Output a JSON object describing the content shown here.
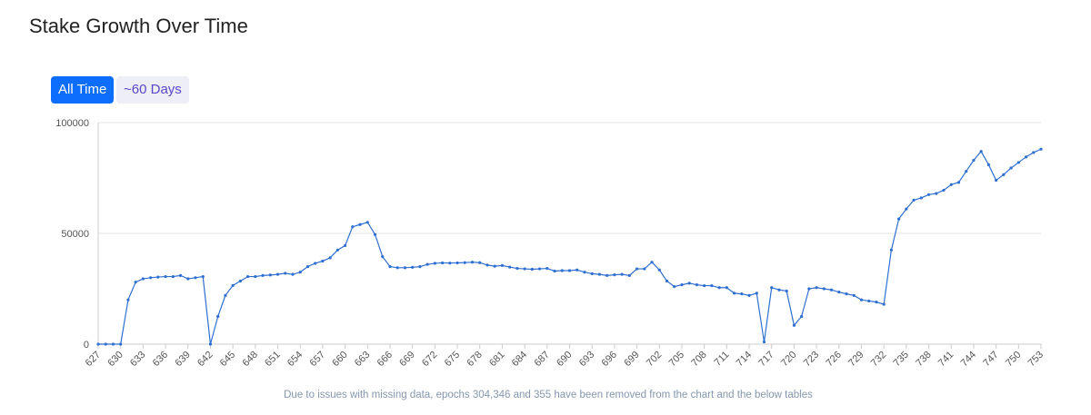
{
  "header": {
    "title": "Stake Growth Over Time"
  },
  "controls": [
    "All Time",
    "~60 Days"
  ],
  "footnote": "Due to issues with missing data, epochs 304,346 and 355 have been removed from the chart and the below tables",
  "chart_data": {
    "type": "line",
    "x": [
      627,
      628,
      629,
      630,
      631,
      632,
      633,
      634,
      635,
      636,
      637,
      638,
      639,
      640,
      641,
      642,
      643,
      644,
      645,
      646,
      647,
      648,
      649,
      650,
      651,
      652,
      653,
      654,
      655,
      656,
      657,
      658,
      659,
      660,
      661,
      662,
      663,
      664,
      665,
      666,
      667,
      668,
      669,
      670,
      671,
      672,
      673,
      674,
      675,
      676,
      677,
      678,
      679,
      680,
      681,
      682,
      683,
      684,
      685,
      686,
      687,
      688,
      689,
      690,
      691,
      692,
      693,
      694,
      695,
      696,
      697,
      698,
      699,
      700,
      701,
      702,
      703,
      704,
      705,
      706,
      707,
      708,
      709,
      710,
      711,
      712,
      713,
      714,
      715,
      716,
      717,
      718,
      719,
      720,
      721,
      722,
      723,
      724,
      725,
      726,
      727,
      728,
      729,
      730,
      731,
      732,
      733,
      734,
      735,
      736,
      737,
      738,
      739,
      740,
      741,
      742,
      743,
      744,
      745,
      746,
      747,
      748,
      749,
      750,
      751,
      752,
      753
    ],
    "series": [
      {
        "color": "#2f6fd1",
        "values": [
          0,
          0,
          0,
          0,
          20000,
          28000,
          29500,
          30000,
          30300,
          30500,
          30500,
          31000,
          29500,
          30000,
          30500,
          0,
          12500,
          22000,
          26500,
          28500,
          30500,
          30500,
          31000,
          31200,
          31500,
          32000,
          31500,
          32500,
          35000,
          36500,
          37500,
          39000,
          42500,
          44500,
          53000,
          54000,
          55000,
          49500,
          39500,
          35000,
          34500,
          34500,
          34700,
          35000,
          36000,
          36500,
          36700,
          36600,
          36700,
          36800,
          37000,
          36800,
          35700,
          35200,
          35500,
          34800,
          34200,
          34000,
          33800,
          34000,
          34200,
          33000,
          33200,
          33200,
          33500,
          32500,
          31800,
          31500,
          31000,
          31300,
          31500,
          31000,
          34000,
          34000,
          37000,
          33500,
          28500,
          26000,
          26800,
          27500,
          26800,
          26400,
          26400,
          25500,
          25500,
          23000,
          22700,
          22000,
          23000,
          1000,
          25500,
          24500,
          24000,
          8500,
          12500,
          25000,
          25500,
          25000,
          24500,
          23500,
          22700,
          22000,
          20000,
          19500,
          19000,
          18000,
          42500,
          56500,
          61000,
          65000,
          66000,
          67500,
          68000,
          69500,
          72000,
          73000,
          78000,
          83000,
          87000,
          81000,
          74000,
          76500,
          79500,
          82000,
          84500,
          86500,
          88000
        ]
      }
    ],
    "xlim": [
      627,
      753
    ],
    "xticks": [
      627,
      630,
      633,
      636,
      639,
      642,
      645,
      648,
      651,
      654,
      657,
      660,
      663,
      666,
      669,
      672,
      675,
      678,
      681,
      684,
      687,
      690,
      693,
      696,
      699,
      702,
      705,
      708,
      711,
      714,
      717,
      720,
      723,
      726,
      729,
      732,
      735,
      738,
      741,
      744,
      747,
      750,
      753
    ],
    "ylim": [
      0,
      100000
    ],
    "yticks": [
      0,
      50000,
      100000
    ],
    "grid": true
  }
}
